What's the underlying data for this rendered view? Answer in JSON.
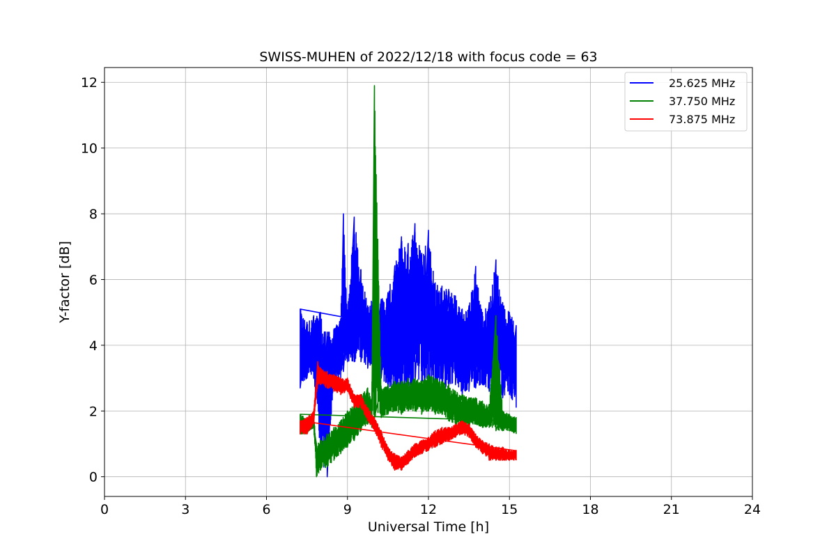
{
  "chart_data": {
    "type": "line",
    "title": "SWISS-MUHEN of 2022/12/18 with focus code = 63",
    "xlabel": "Universal Time [h]",
    "ylabel": "Y-factor [dB]",
    "xlim": [
      0,
      24
    ],
    "ylim": [
      -0.6,
      12.45
    ],
    "xticks": [
      "0",
      "3",
      "6",
      "9",
      "12",
      "15",
      "18",
      "21",
      "24"
    ],
    "yticks": [
      "0",
      "2",
      "4",
      "6",
      "8",
      "10",
      "12"
    ],
    "grid": true,
    "legend_position": "top-right",
    "series": [
      {
        "name": "25.625 MHz",
        "color": "#0000ff",
        "x": [
          7.25,
          7.5,
          7.75,
          8.0,
          8.25,
          8.5,
          8.75,
          8.85,
          9.0,
          9.25,
          9.5,
          9.75,
          10.0,
          10.25,
          10.5,
          10.75,
          11.0,
          11.25,
          11.5,
          11.75,
          12.0,
          12.25,
          12.5,
          12.75,
          13.0,
          13.25,
          13.5,
          13.75,
          14.0,
          14.25,
          14.5,
          14.75,
          15.0,
          15.25
        ],
        "low": [
          2.7,
          3.0,
          3.0,
          0.5,
          0.0,
          2.8,
          3.0,
          3.2,
          3.5,
          3.5,
          3.5,
          3.3,
          3.5,
          3.0,
          2.6,
          2.7,
          2.5,
          2.7,
          2.8,
          2.8,
          2.5,
          2.8,
          2.6,
          2.8,
          2.8,
          2.5,
          2.6,
          2.7,
          2.8,
          2.6,
          2.3,
          2.4,
          2.5,
          2.1
        ],
        "high": [
          5.1,
          4.7,
          4.9,
          5.0,
          4.4,
          4.5,
          4.8,
          8.0,
          5.0,
          7.9,
          6.3,
          5.2,
          5.5,
          5.4,
          5.6,
          6.4,
          7.3,
          7.1,
          7.7,
          6.8,
          7.5,
          5.9,
          5.8,
          5.7,
          5.5,
          5.1,
          5.2,
          6.4,
          5.0,
          5.3,
          6.6,
          5.3,
          5.0,
          4.6
        ]
      },
      {
        "name": "37.750 MHz",
        "color": "#008000",
        "x": [
          7.25,
          7.5,
          7.75,
          7.85,
          8.0,
          8.25,
          8.5,
          8.75,
          9.0,
          9.25,
          9.5,
          9.75,
          9.9,
          10.0,
          10.25,
          10.5,
          10.75,
          11.0,
          11.25,
          11.5,
          11.75,
          12.0,
          12.25,
          12.5,
          12.75,
          13.0,
          13.25,
          13.5,
          13.75,
          14.0,
          14.25,
          14.5,
          14.75,
          15.0,
          15.25
        ],
        "low": [
          1.3,
          1.3,
          1.5,
          0.0,
          0.2,
          0.3,
          0.5,
          0.7,
          0.9,
          1.1,
          1.4,
          1.6,
          1.5,
          1.8,
          1.8,
          1.9,
          2.0,
          1.9,
          2.0,
          2.0,
          1.9,
          2.0,
          1.9,
          1.9,
          1.7,
          1.6,
          1.5,
          1.5,
          1.6,
          1.5,
          1.5,
          1.4,
          1.4,
          1.4,
          1.3
        ],
        "high": [
          1.9,
          1.8,
          1.9,
          1.0,
          1.1,
          1.3,
          1.5,
          1.7,
          2.0,
          2.2,
          2.5,
          2.7,
          2.4,
          11.9,
          2.7,
          2.8,
          2.9,
          2.9,
          3.0,
          3.0,
          2.9,
          3.1,
          3.0,
          2.9,
          2.8,
          2.6,
          2.5,
          2.4,
          2.4,
          2.3,
          2.2,
          4.9,
          2.0,
          1.9,
          1.8
        ]
      },
      {
        "name": "73.875 MHz",
        "color": "#ff0000",
        "x": [
          7.25,
          7.5,
          7.75,
          7.9,
          8.0,
          8.25,
          8.5,
          8.75,
          9.0,
          9.25,
          9.5,
          9.75,
          10.0,
          10.25,
          10.5,
          10.75,
          11.0,
          11.25,
          11.5,
          11.75,
          12.0,
          12.25,
          12.5,
          12.75,
          13.0,
          13.25,
          13.5,
          13.75,
          14.0,
          14.25,
          14.5,
          14.75,
          15.0,
          15.25
        ],
        "low": [
          1.3,
          1.3,
          1.6,
          2.8,
          2.8,
          2.7,
          2.6,
          2.5,
          2.6,
          2.1,
          2.1,
          1.7,
          1.4,
          0.9,
          0.5,
          0.2,
          0.2,
          0.4,
          0.6,
          0.7,
          0.8,
          0.9,
          1.0,
          1.1,
          1.2,
          1.3,
          1.2,
          0.9,
          0.7,
          0.5,
          0.5,
          0.5,
          0.5,
          0.5
        ],
        "high": [
          1.7,
          1.8,
          2.0,
          3.5,
          3.3,
          3.2,
          3.1,
          3.0,
          3.0,
          2.5,
          2.5,
          2.1,
          1.8,
          1.4,
          0.9,
          0.7,
          0.6,
          0.8,
          1.0,
          1.1,
          1.2,
          1.4,
          1.5,
          1.5,
          1.6,
          1.7,
          1.6,
          1.3,
          1.1,
          1.0,
          0.9,
          0.9,
          0.8,
          0.8
        ]
      }
    ]
  }
}
